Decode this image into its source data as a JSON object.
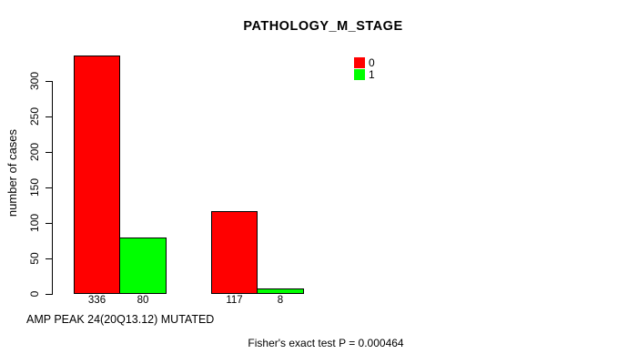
{
  "chart_data": {
    "type": "bar",
    "title": "PATHOLOGY_M_STAGE",
    "ylabel": "number of cases",
    "xlabel": "AMP PEAK 24(20Q13.12) MUTATED",
    "annotation": "Fisher's exact test P = 0.000464",
    "yticks": [
      0,
      50,
      100,
      150,
      200,
      250,
      300
    ],
    "ylim": [
      0,
      336
    ],
    "grid": false,
    "legend_position": "top-right",
    "legend": [
      {
        "label": "0",
        "color": "#ff0000"
      },
      {
        "label": "1",
        "color": "#00ff00"
      }
    ],
    "series": [
      {
        "name": "0",
        "color": "#ff0000",
        "values": [
          336,
          117
        ]
      },
      {
        "name": "1",
        "color": "#00ff00",
        "values": [
          80,
          8
        ]
      }
    ],
    "bar_value_labels": [
      "336",
      "80",
      "117",
      "8"
    ],
    "bar_border_color": "#000000",
    "background_color": "#ffffff",
    "text_color": "#000000"
  }
}
